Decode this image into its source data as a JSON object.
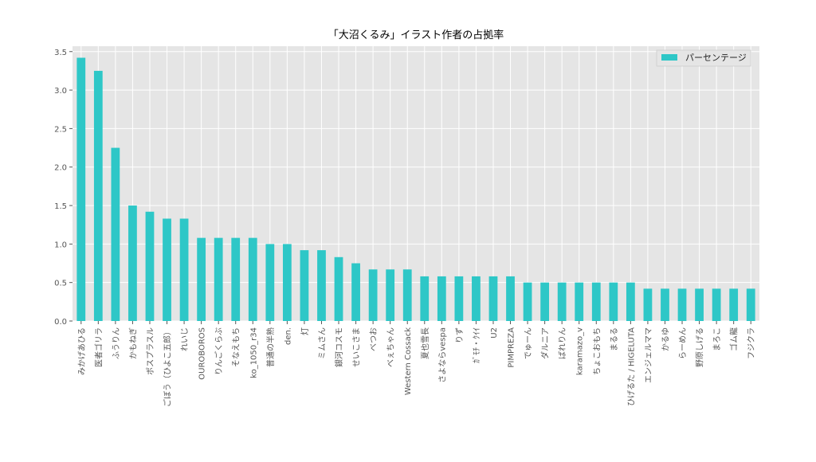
{
  "chart_data": {
    "type": "bar",
    "title": "「大沼くるみ」イラスト作者の占拠率",
    "xlabel": "",
    "ylabel": "",
    "ylim": [
      0,
      3.57
    ],
    "yticks": [
      "0.0",
      "0.5",
      "1.0",
      "1.5",
      "2.0",
      "2.5",
      "3.0",
      "3.5"
    ],
    "grid": true,
    "legend_position": "top-right",
    "colors": {
      "bar": "#2ec7c7",
      "plot_bg": "#e5e5e5",
      "grid": "#ffffff",
      "text": "#555555",
      "title": "#000000"
    },
    "categories": [
      "みかげあひる",
      "医者ゴリラ",
      "ふうりん",
      "かもねぎ",
      "ポスプラスル",
      "ごぼう（ひよこ五郎）",
      "れいじ",
      "OUROBOROS",
      "りんごくらぶ",
      "そなえもち",
      "ko_1050_r34",
      "普通の半熟",
      "den.",
      "灯",
      "ミムさん",
      "銀河コスモ",
      "せいこさま",
      "べつお",
      "べぇちゃん",
      "Western Cossack",
      "夏也雪長",
      "さよならvespa",
      "りず",
      "ｶﾞﾓﾁ・ｸｲｲ",
      "U2",
      "PIMPREZA",
      "でゅーん",
      "ダルニア",
      "ばれりん",
      "karamazo_v",
      "ちょこおもち",
      "まるる",
      "ひげるた / HIGELUTA",
      "エンジェルママ",
      "かるゆ",
      "らーめん",
      "野原しげる",
      "まろこ",
      "ゴム龍",
      "フジクラ"
    ],
    "series": [
      {
        "name": "パーセンテージ",
        "values": [
          3.42,
          3.25,
          2.25,
          1.5,
          1.42,
          1.33,
          1.33,
          1.08,
          1.08,
          1.08,
          1.08,
          1.0,
          1.0,
          0.92,
          0.92,
          0.83,
          0.75,
          0.67,
          0.67,
          0.67,
          0.58,
          0.58,
          0.58,
          0.58,
          0.58,
          0.58,
          0.5,
          0.5,
          0.5,
          0.5,
          0.5,
          0.5,
          0.5,
          0.42,
          0.42,
          0.42,
          0.42,
          0.42,
          0.42,
          0.42
        ]
      }
    ]
  }
}
